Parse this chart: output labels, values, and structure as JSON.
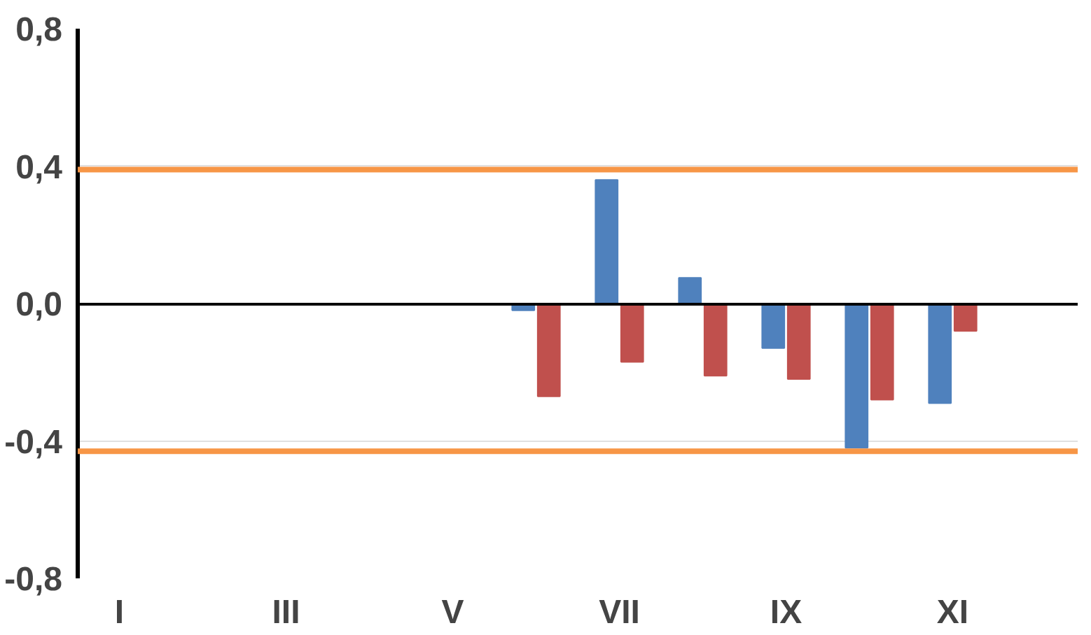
{
  "chart_data": {
    "type": "bar",
    "categories": [
      "I",
      null,
      "III",
      null,
      "V",
      null,
      "VII",
      null,
      "IX",
      null,
      "XI",
      null
    ],
    "series": [
      {
        "color": "#4f81bd",
        "values": [
          null,
          null,
          null,
          null,
          null,
          -0.02,
          0.36,
          0.075,
          -0.13,
          -0.42,
          -0.29,
          null
        ]
      },
      {
        "color": "#c0504d",
        "values": [
          null,
          null,
          null,
          null,
          null,
          -0.27,
          -0.17,
          -0.21,
          -0.22,
          -0.28,
          -0.08,
          null
        ]
      }
    ],
    "ylim": [
      -0.8,
      0.8
    ],
    "yticks": [
      {
        "value": -0.8,
        "label": "-0,8"
      },
      {
        "value": -0.4,
        "label": "-0,4"
      },
      {
        "value": 0,
        "label": "0,0"
      },
      {
        "value": 0.4,
        "label": "0,4"
      },
      {
        "value": 0.8,
        "label": "0,8"
      }
    ],
    "ref_lines": [
      {
        "axis": "y",
        "value": 0.39,
        "color": "#f79646"
      },
      {
        "axis": "y",
        "value": -0.43,
        "color": "#f79646"
      }
    ],
    "grid": "y"
  }
}
